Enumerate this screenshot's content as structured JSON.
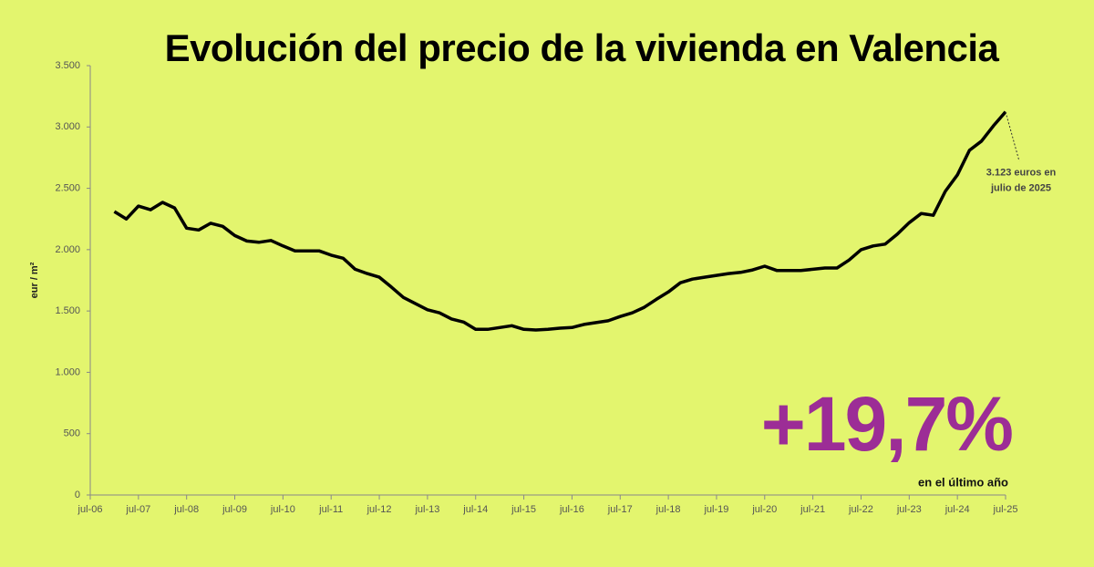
{
  "chart_data": {
    "type": "line",
    "title": "Evolución del precio de la vivienda en Valencia",
    "y_label": "eur / m²",
    "color": "#000000",
    "categories": [
      "jul-06",
      null,
      null,
      null,
      "jul-07",
      null,
      null,
      null,
      "jul-08",
      null,
      null,
      null,
      "jul-09",
      null,
      null,
      null,
      "jul-10",
      null,
      null,
      null,
      "jul-11",
      null,
      null,
      null,
      "jul-12",
      null,
      null,
      null,
      "jul-13",
      null,
      null,
      null,
      "jul-14",
      null,
      null,
      null,
      "jul-15",
      null,
      null,
      null,
      "jul-16",
      null,
      null,
      null,
      "jul-17",
      null,
      null,
      null,
      "jul-18",
      null,
      null,
      null,
      "jul-19",
      null,
      null,
      null,
      "jul-20",
      null,
      null,
      null,
      "jul-21",
      null,
      null,
      null,
      "jul-22",
      null,
      null,
      null,
      "jul-23",
      null,
      null,
      null,
      "jul-24",
      null,
      null,
      null,
      "jul-25"
    ],
    "values": [
      null,
      null,
      2310,
      2250,
      2355,
      2325,
      2385,
      2340,
      2175,
      2160,
      2215,
      2190,
      2115,
      2070,
      2060,
      2075,
      2030,
      1990,
      1990,
      1990,
      1955,
      1930,
      1840,
      1805,
      1775,
      1695,
      1610,
      1560,
      1510,
      1485,
      1435,
      1410,
      1350,
      1350,
      1365,
      1380,
      1350,
      1345,
      1350,
      1360,
      1365,
      1390,
      1405,
      1420,
      1455,
      1485,
      1530,
      1595,
      1655,
      1730,
      1760,
      1775,
      1790,
      1805,
      1815,
      1835,
      1865,
      1830,
      1830,
      1830,
      1840,
      1850,
      1850,
      1915,
      2000,
      2030,
      2045,
      2125,
      2220,
      2295,
      2280,
      2475,
      2610,
      2810,
      2885,
      3010,
      3123
    ],
    "ylim": [
      0,
      3500
    ],
    "yticks": [
      0,
      500,
      {
        "value": 1000,
        "label": "1.000"
      },
      {
        "value": 1500,
        "label": "1.500"
      },
      {
        "value": 2000,
        "label": "2.000"
      },
      {
        "value": 2500,
        "label": "2.500"
      },
      {
        "value": 3000,
        "label": "3.000"
      },
      {
        "value": 3500,
        "label": "3.500"
      }
    ],
    "annotation": [
      "3.123 euros en",
      "julio de 2025"
    ],
    "highlight": "+19,7%",
    "highlight_caption": "en el último año"
  }
}
